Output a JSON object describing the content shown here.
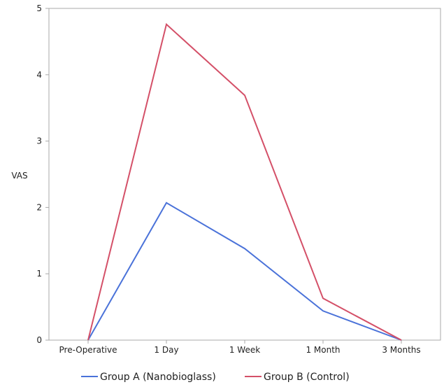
{
  "chart_data": {
    "type": "line",
    "title": "",
    "xlabel": "",
    "ylabel": "VAS",
    "categories": [
      "Pre-Operative",
      "1 Day",
      "1 Week",
      "1 Month",
      "3 Months"
    ],
    "ylim": [
      0,
      5
    ],
    "yticks": [
      0,
      1,
      2,
      3,
      4,
      5
    ],
    "grid": false,
    "legend_position": "bottom",
    "series": [
      {
        "name": "Group A (Nanobioglass)",
        "color": "#4a72d9",
        "values": [
          0,
          2.07,
          1.38,
          0.44,
          0
        ]
      },
      {
        "name": "Group B (Control)",
        "color": "#d45068",
        "values": [
          0,
          4.76,
          3.69,
          0.63,
          0
        ]
      }
    ]
  }
}
